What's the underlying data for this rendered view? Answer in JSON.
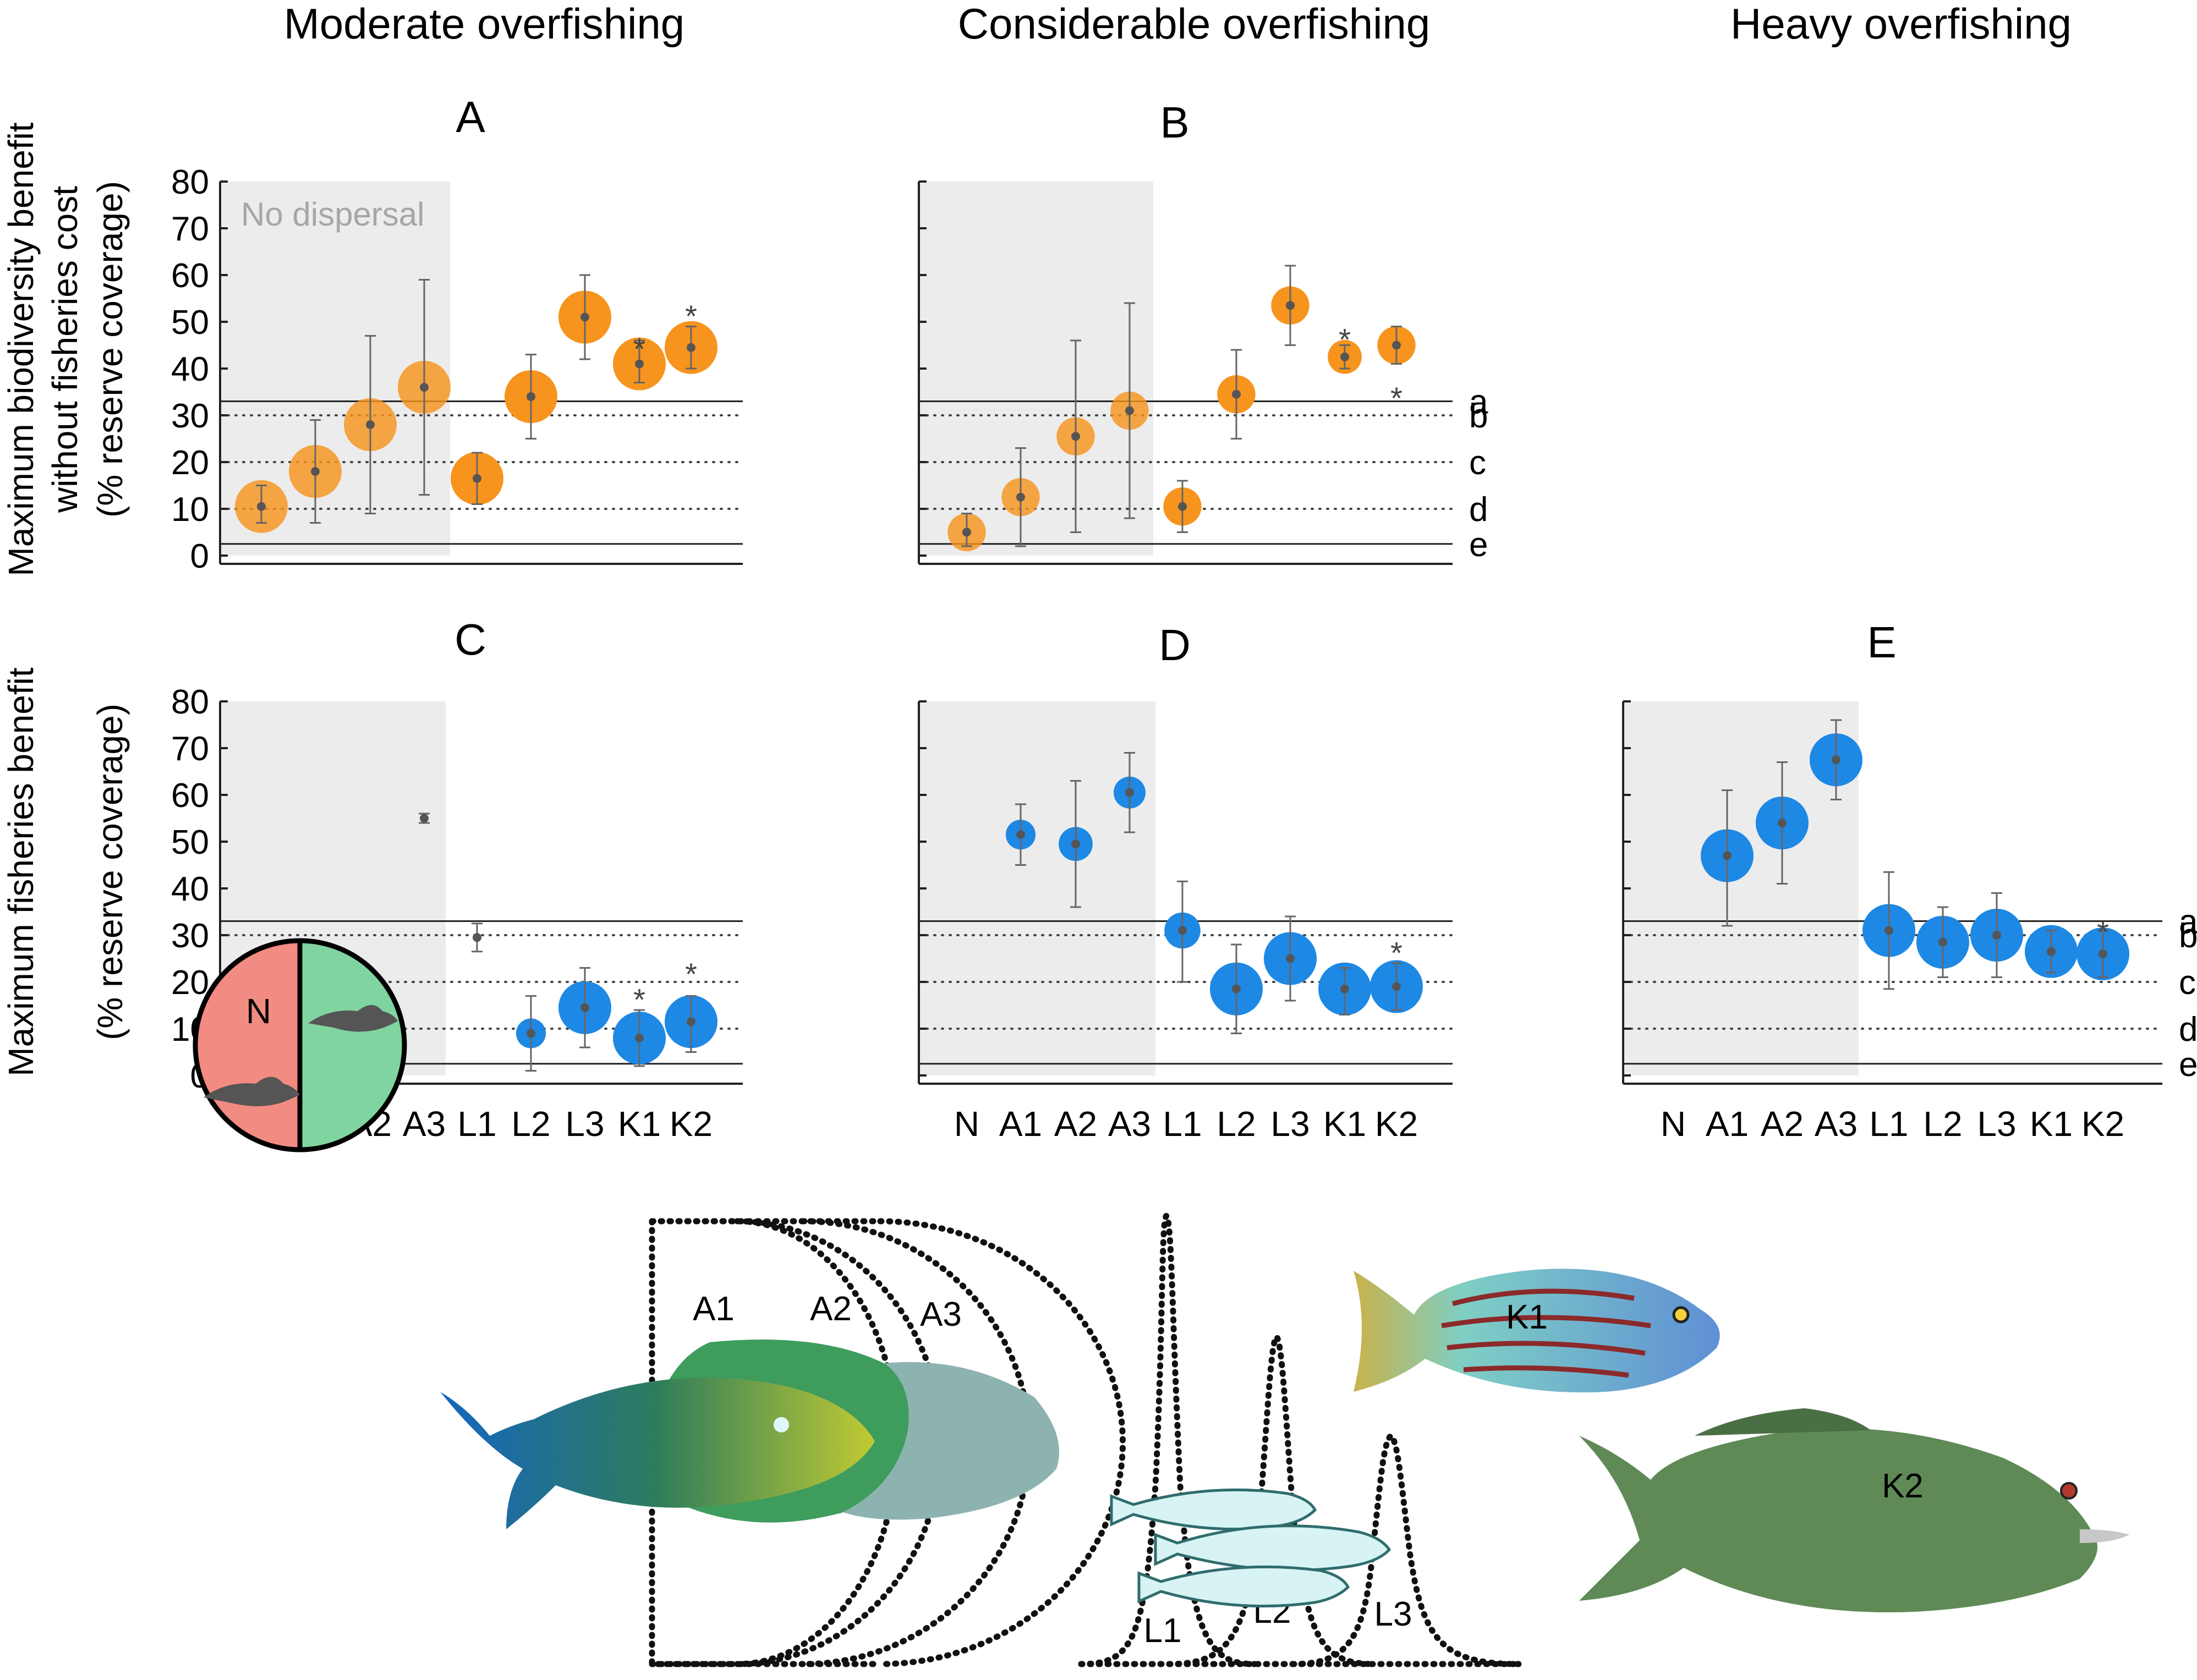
{
  "columns": [
    "Moderate overfishing",
    "Considerable overfishing",
    "Heavy overfishing"
  ],
  "row_labels": {
    "top": [
      "Maximum biodiversity benefit",
      "without fisheries cost",
      "(% reserve coverage)"
    ],
    "bottom": [
      "Maximum fisheries benefit",
      "(% reserve coverage)"
    ]
  },
  "no_dispersal_label": "No dispersal",
  "reference_lines": [
    {
      "label": "a",
      "value": 33,
      "style": "solid"
    },
    {
      "label": "b",
      "value": 30,
      "style": "dotted"
    },
    {
      "label": "c",
      "value": 20,
      "style": "dotted"
    },
    {
      "label": "d",
      "value": 10,
      "style": "dotted"
    },
    {
      "label": "e",
      "value": 2.5,
      "style": "solid"
    }
  ],
  "colors": {
    "biodiversity": "#f7941d",
    "fisheries": "#1e88e5",
    "shade": "#ececec",
    "point": "#555555"
  },
  "chart_data": [
    {
      "panel": "A",
      "type": "scatter",
      "metric": "biodiversity",
      "ylim": [
        0,
        80
      ],
      "yticks": [
        0,
        10,
        20,
        30,
        40,
        50,
        60,
        70,
        80
      ],
      "categories": [
        "N",
        "A1",
        "A2",
        "A3",
        "L1",
        "L2",
        "L3",
        "K1",
        "K2"
      ],
      "points": [
        {
          "x": "N",
          "y": 10.5,
          "lo": 7,
          "hi": 15,
          "size": 1.0
        },
        {
          "x": "A1",
          "y": 18,
          "lo": 7,
          "hi": 29,
          "size": 1.0
        },
        {
          "x": "A2",
          "y": 28,
          "lo": 9,
          "hi": 47,
          "size": 1.0
        },
        {
          "x": "A3",
          "y": 36,
          "lo": 13,
          "hi": 59,
          "size": 1.0
        },
        {
          "x": "L1",
          "y": 16.5,
          "lo": 11,
          "hi": 22,
          "size": 1.0
        },
        {
          "x": "L2",
          "y": 34,
          "lo": 25,
          "hi": 43,
          "size": 1.0
        },
        {
          "x": "L3",
          "y": 51,
          "lo": 42,
          "hi": 60,
          "size": 1.0
        },
        {
          "x": "K1",
          "y": 41,
          "lo": 37,
          "hi": 46,
          "size": 1.0,
          "star": 45
        },
        {
          "x": "K2",
          "y": 44.5,
          "lo": 40,
          "hi": 49,
          "size": 1.0,
          "star": 52
        }
      ]
    },
    {
      "panel": "B",
      "type": "scatter",
      "metric": "biodiversity",
      "ylim": [
        0,
        80
      ],
      "yticks": [
        0,
        10,
        20,
        30,
        40,
        50,
        60,
        70,
        80
      ],
      "categories": [
        "N",
        "A1",
        "A2",
        "A3",
        "L1",
        "L2",
        "L3",
        "K1",
        "K2"
      ],
      "points": [
        {
          "x": "N",
          "y": 5,
          "lo": 2,
          "hi": 9,
          "size": 0.65
        },
        {
          "x": "A1",
          "y": 12.5,
          "lo": 2,
          "hi": 23,
          "size": 0.65
        },
        {
          "x": "A2",
          "y": 25.5,
          "lo": 5,
          "hi": 46,
          "size": 0.65
        },
        {
          "x": "A3",
          "y": 31,
          "lo": 8,
          "hi": 54,
          "size": 0.65
        },
        {
          "x": "L1",
          "y": 10.5,
          "lo": 5,
          "hi": 16,
          "size": 0.65
        },
        {
          "x": "L2",
          "y": 34.5,
          "lo": 25,
          "hi": 44,
          "size": 0.65
        },
        {
          "x": "L3",
          "y": 53.5,
          "lo": 45,
          "hi": 62,
          "size": 0.65
        },
        {
          "x": "K1",
          "y": 42.5,
          "lo": 40,
          "hi": 45,
          "size": 0.55,
          "star": 47
        },
        {
          "x": "K2",
          "y": 45,
          "lo": 41,
          "hi": 49,
          "size": 0.65,
          "star": 34.5
        }
      ]
    },
    {
      "panel": "C",
      "type": "scatter",
      "metric": "fisheries",
      "ylim": [
        0,
        80
      ],
      "yticks": [
        0,
        10,
        20,
        30,
        40,
        50,
        60,
        70,
        80
      ],
      "categories": [
        "N",
        "A1",
        "A2",
        "A3",
        "L1",
        "L2",
        "L3",
        "K1",
        "K2"
      ],
      "points": [
        {
          "x": "A3",
          "y": 55,
          "lo": 54,
          "hi": 56,
          "size": 0
        },
        {
          "x": "L1",
          "y": 29.5,
          "lo": 26.5,
          "hi": 32.5,
          "size": 0
        },
        {
          "x": "L2",
          "y": 9,
          "lo": 1,
          "hi": 17,
          "size": 0.45
        },
        {
          "x": "L3",
          "y": 14.5,
          "lo": 6,
          "hi": 23,
          "size": 1.0
        },
        {
          "x": "K1",
          "y": 8,
          "lo": 2,
          "hi": 14,
          "size": 1.0,
          "star": 17
        },
        {
          "x": "K2",
          "y": 11.5,
          "lo": 5,
          "hi": 17,
          "size": 1.0,
          "star": 22.5
        }
      ]
    },
    {
      "panel": "D",
      "type": "scatter",
      "metric": "fisheries",
      "ylim": [
        0,
        80
      ],
      "yticks": [
        0,
        10,
        20,
        30,
        40,
        50,
        60,
        70,
        80
      ],
      "categories": [
        "N",
        "A1",
        "A2",
        "A3",
        "L1",
        "L2",
        "L3",
        "K1",
        "K2"
      ],
      "points": [
        {
          "x": "A1",
          "y": 51.5,
          "lo": 45,
          "hi": 58,
          "size": 0.45
        },
        {
          "x": "A2",
          "y": 49.5,
          "lo": 36,
          "hi": 63,
          "size": 0.55
        },
        {
          "x": "A3",
          "y": 60.5,
          "lo": 52,
          "hi": 69,
          "size": 0.5
        },
        {
          "x": "L1",
          "y": 31,
          "lo": 20,
          "hi": 41.5,
          "size": 0.6
        },
        {
          "x": "L2",
          "y": 18.5,
          "lo": 9,
          "hi": 28,
          "size": 1.0
        },
        {
          "x": "L3",
          "y": 25,
          "lo": 16,
          "hi": 34,
          "size": 1.0
        },
        {
          "x": "K1",
          "y": 18.5,
          "lo": 13,
          "hi": 23,
          "size": 1.0
        },
        {
          "x": "K2",
          "y": 19,
          "lo": 14,
          "hi": 24,
          "size": 1.0,
          "star": 27
        }
      ]
    },
    {
      "panel": "E",
      "type": "scatter",
      "metric": "fisheries",
      "ylim": [
        0,
        80
      ],
      "yticks": [
        0,
        10,
        20,
        30,
        40,
        50,
        60,
        70,
        80
      ],
      "categories": [
        "N",
        "A1",
        "A2",
        "A3",
        "L1",
        "L2",
        "L3",
        "K1",
        "K2"
      ],
      "points": [
        {
          "x": "A1",
          "y": 47,
          "lo": 32,
          "hi": 61,
          "size": 1.0
        },
        {
          "x": "A2",
          "y": 54,
          "lo": 41,
          "hi": 67,
          "size": 1.0
        },
        {
          "x": "A3",
          "y": 67.5,
          "lo": 59,
          "hi": 76,
          "size": 1.0
        },
        {
          "x": "L1",
          "y": 31,
          "lo": 18.5,
          "hi": 43.5,
          "size": 1.0
        },
        {
          "x": "L2",
          "y": 28.5,
          "lo": 21,
          "hi": 36,
          "size": 1.0
        },
        {
          "x": "L3",
          "y": 30,
          "lo": 21,
          "hi": 39,
          "size": 1.0
        },
        {
          "x": "K1",
          "y": 26.5,
          "lo": 22,
          "hi": 31,
          "size": 1.0
        },
        {
          "x": "K2",
          "y": 26,
          "lo": 21,
          "hi": 31,
          "size": 1.0,
          "star": 31.5
        }
      ]
    }
  ],
  "illustration": {
    "circle_label": "N",
    "dispersal_labels": [
      "A1",
      "A2",
      "A3",
      "L1",
      "L2",
      "L3",
      "K1",
      "K2"
    ],
    "icons": [
      "reef-fish-icon",
      "sardine-school-icon",
      "striped-fish-icon",
      "grouper-fish-icon"
    ]
  }
}
